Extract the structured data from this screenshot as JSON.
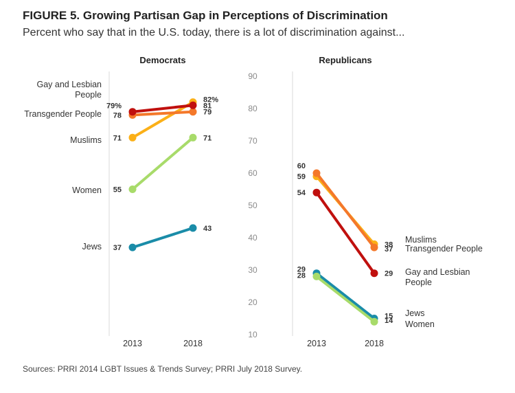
{
  "figure_title": "FIGURE 5.  Growing Partisan Gap in Perceptions of Discrimination",
  "subtitle": "Percent who say that in the U.S. today, there is a lot of discrimination against...",
  "source": "Sources: PRRI 2014 LGBT Issues & Trends Survey; PRRI July 2018 Survey.",
  "chart_data": {
    "type": "line",
    "x": [
      "2013",
      "2018"
    ],
    "y_ticks": [
      "90",
      "80",
      "70",
      "60",
      "50",
      "40",
      "30",
      "20",
      "10"
    ],
    "ylim": [
      10,
      90
    ],
    "grid": false,
    "panels": [
      {
        "title": "Democrats",
        "series": [
          {
            "name": "Jews",
            "label_lines": [
              "Jews"
            ],
            "values": [
              37,
              43
            ],
            "value_labels": [
              "37",
              "43"
            ],
            "color": "#1a8ca8"
          },
          {
            "name": "Women",
            "label_lines": [
              "Women"
            ],
            "values": [
              55,
              71
            ],
            "value_labels": [
              "55",
              "71"
            ],
            "color": "#a8db6a"
          },
          {
            "name": "Muslims",
            "label_lines": [
              "Muslims"
            ],
            "values": [
              71,
              82
            ],
            "value_labels": [
              "71",
              "82%"
            ],
            "color": "#fbb018"
          },
          {
            "name": "Transgender People",
            "label_lines": [
              "Transgender People"
            ],
            "values": [
              78,
              79
            ],
            "value_labels": [
              "78",
              "79"
            ],
            "color": "#f4782a"
          },
          {
            "name": "Gay and Lesbian People",
            "label_lines": [
              "Gay and Lesbian",
              "People"
            ],
            "values": [
              79,
              81
            ],
            "value_labels": [
              "79%",
              "81"
            ],
            "color": "#c0100e"
          }
        ]
      },
      {
        "title": "Republicans",
        "series": [
          {
            "name": "Gay and Lesbian People",
            "label_lines": [
              "Gay and Lesbian",
              "People"
            ],
            "values": [
              54,
              29
            ],
            "value_labels": [
              "54",
              "29"
            ],
            "color": "#c0100e"
          },
          {
            "name": "Muslims",
            "label_lines": [
              "Muslims"
            ],
            "values": [
              59,
              38
            ],
            "value_labels": [
              "59",
              "38"
            ],
            "color": "#fbb018"
          },
          {
            "name": "Transgender People",
            "label_lines": [
              "Transgender People"
            ],
            "values": [
              60,
              37
            ],
            "value_labels": [
              "60",
              "37"
            ],
            "color": "#f4782a"
          },
          {
            "name": "Jews",
            "label_lines": [
              "Jews"
            ],
            "values": [
              29,
              15
            ],
            "value_labels": [
              "29",
              "15"
            ],
            "color": "#1a8ca8"
          },
          {
            "name": "Women",
            "label_lines": [
              "Women"
            ],
            "values": [
              28,
              14
            ],
            "value_labels": [
              "28",
              "14"
            ],
            "color": "#a8db6a"
          }
        ]
      }
    ]
  }
}
